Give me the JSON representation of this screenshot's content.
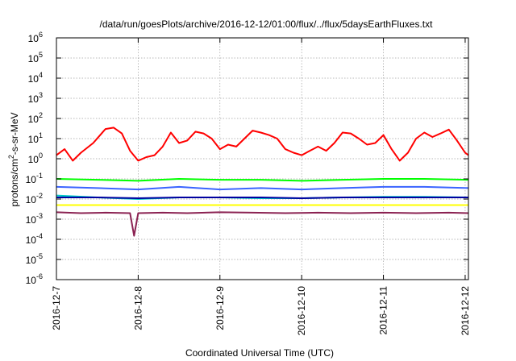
{
  "chart_data": {
    "type": "line",
    "title": "/data/run/goesPlots/archive/2016-12-12/01:00/flux/../flux/5daysEarthFluxes.txt",
    "xlabel": "Coordinated Universal Time (UTC)",
    "ylabel": {
      "prefix": "protons/cm",
      "sup": "2",
      "suffix": "-s-sr-MeV"
    },
    "x_axis": {
      "start": "2016-12-07",
      "end": "2016-12-12 01:00",
      "range_days": [
        0,
        5.04
      ]
    },
    "xticks": [
      {
        "value": 0,
        "label": "2016-12-7"
      },
      {
        "value": 1,
        "label": "2016-12-8"
      },
      {
        "value": 2,
        "label": "2016-12-9"
      },
      {
        "value": 3,
        "label": "2016-12-10"
      },
      {
        "value": 4,
        "label": "2016-12-11"
      },
      {
        "value": 5,
        "label": "2016-12-12"
      }
    ],
    "y_axis": {
      "scale": "log",
      "range": [
        1e-06,
        1000000.0
      ]
    },
    "yticks": [
      {
        "exp": -6,
        "label": "10",
        "sup": "-6"
      },
      {
        "exp": -5,
        "label": "10",
        "sup": "-5"
      },
      {
        "exp": -4,
        "label": "10",
        "sup": "-4"
      },
      {
        "exp": -3,
        "label": "10",
        "sup": "-3"
      },
      {
        "exp": -2,
        "label": "10",
        "sup": "-2"
      },
      {
        "exp": -1,
        "label": "10",
        "sup": "-1"
      },
      {
        "exp": 0,
        "label": "10",
        "sup": "0"
      },
      {
        "exp": 1,
        "label": "10",
        "sup": "1"
      },
      {
        "exp": 2,
        "label": "10",
        "sup": "2"
      },
      {
        "exp": 3,
        "label": "10",
        "sup": "3"
      },
      {
        "exp": 4,
        "label": "10",
        "sup": "4"
      },
      {
        "exp": 5,
        "label": "10",
        "sup": "5"
      },
      {
        "exp": 6,
        "label": "10",
        "sup": "6"
      }
    ],
    "grid": true,
    "legend": "none",
    "series": [
      {
        "color": "#ff0000",
        "x": [
          0,
          0.1,
          0.2,
          0.3,
          0.45,
          0.6,
          0.7,
          0.8,
          0.9,
          1.0,
          1.1,
          1.2,
          1.3,
          1.4,
          1.5,
          1.6,
          1.7,
          1.8,
          1.9,
          2.0,
          2.1,
          2.2,
          2.3,
          2.4,
          2.5,
          2.6,
          2.7,
          2.8,
          2.9,
          3.0,
          3.1,
          3.2,
          3.3,
          3.4,
          3.5,
          3.6,
          3.7,
          3.8,
          3.9,
          4.0,
          4.1,
          4.2,
          4.3,
          4.4,
          4.5,
          4.6,
          4.7,
          4.8,
          4.9,
          5.0,
          5.04
        ],
        "values": [
          1.5,
          3,
          0.8,
          2,
          6,
          30,
          35,
          18,
          2.5,
          0.8,
          1.2,
          1.5,
          4,
          20,
          6,
          8,
          22,
          18,
          10,
          3,
          5,
          4,
          10,
          25,
          20,
          15,
          10,
          3,
          2,
          1.5,
          2.5,
          4,
          2.5,
          6,
          20,
          18,
          10,
          5,
          6,
          15,
          3,
          0.8,
          2,
          10,
          20,
          12,
          18,
          28,
          8,
          2,
          1.5
        ]
      },
      {
        "color": "#00ff00",
        "x": [
          0,
          0.5,
          1.0,
          1.5,
          2.0,
          2.5,
          3.0,
          3.5,
          4.0,
          4.5,
          5.04
        ],
        "values": [
          0.1,
          0.09,
          0.08,
          0.1,
          0.09,
          0.09,
          0.08,
          0.09,
          0.1,
          0.1,
          0.09
        ]
      },
      {
        "color": "#3a64ff",
        "x": [
          0,
          0.5,
          1.0,
          1.5,
          2.0,
          2.5,
          3.0,
          3.5,
          4.0,
          4.5,
          5.04
        ],
        "values": [
          0.04,
          0.035,
          0.03,
          0.04,
          0.03,
          0.035,
          0.03,
          0.035,
          0.04,
          0.04,
          0.035
        ]
      },
      {
        "color": "#00c8c8",
        "x": [
          0,
          0.5,
          1.0,
          1.5,
          2.0,
          2.5,
          3.0,
          3.5,
          4.0,
          4.5,
          5.04
        ],
        "values": [
          0.015,
          0.012,
          0.01,
          0.012,
          0.012,
          0.011,
          0.011,
          0.012,
          0.013,
          0.013,
          0.012
        ]
      },
      {
        "color": "#0000a0",
        "x": [
          0,
          0.5,
          1.0,
          1.5,
          2.0,
          2.5,
          3.0,
          3.5,
          4.0,
          4.5,
          5.04
        ],
        "values": [
          0.012,
          0.012,
          0.011,
          0.012,
          0.012,
          0.012,
          0.011,
          0.012,
          0.012,
          0.012,
          0.012
        ]
      },
      {
        "color": "#ffff00",
        "x": [
          0,
          0.5,
          1.0,
          1.5,
          2.0,
          2.5,
          3.0,
          3.5,
          4.0,
          4.5,
          5.04
        ],
        "values": [
          0.005,
          0.005,
          0.005,
          0.005,
          0.005,
          0.005,
          0.005,
          0.005,
          0.005,
          0.005,
          0.005
        ]
      },
      {
        "color": "#8b2252",
        "x": [
          0,
          0.3,
          0.6,
          0.9,
          0.95,
          1.0,
          1.3,
          1.6,
          2.0,
          2.4,
          2.8,
          3.2,
          3.6,
          4.0,
          4.4,
          4.8,
          5.04
        ],
        "values": [
          0.0022,
          0.002,
          0.0021,
          0.002,
          0.00015,
          0.002,
          0.0021,
          0.002,
          0.0022,
          0.0021,
          0.002,
          0.0021,
          0.002,
          0.0021,
          0.002,
          0.0021,
          0.002
        ]
      }
    ]
  }
}
